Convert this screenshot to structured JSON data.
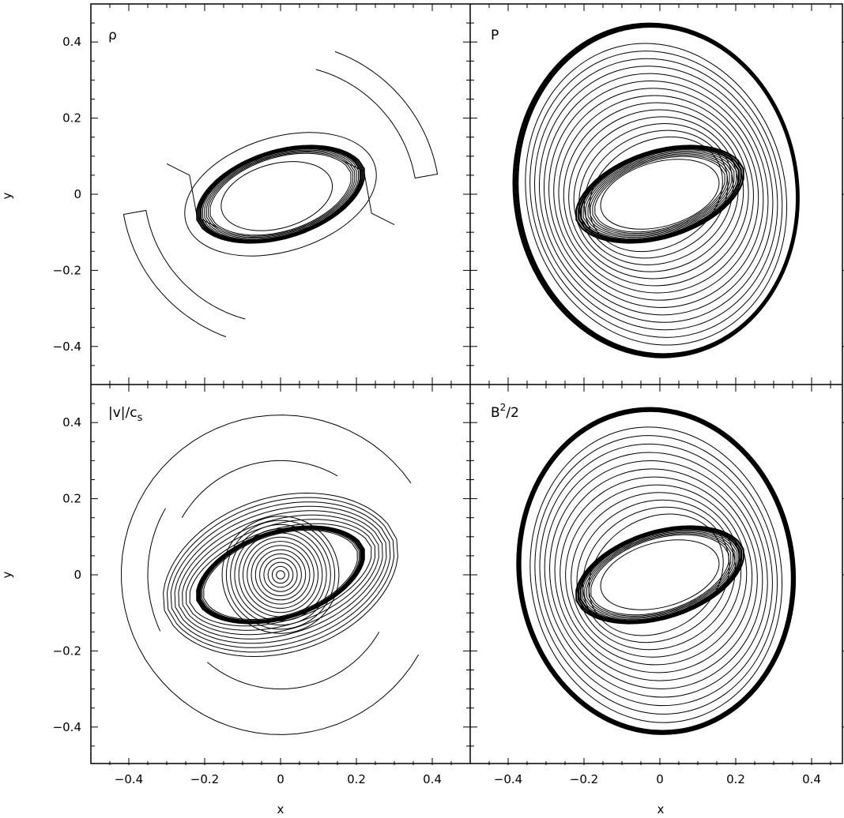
{
  "chart_data": [
    {
      "type": "contour",
      "panel": "top-left",
      "label_html": "ρ",
      "x_axis": {
        "ticks": [
          -0.4,
          -0.2,
          0,
          0.2,
          0.4
        ],
        "range": [
          -0.5,
          0.5
        ],
        "label": ""
      },
      "y_axis": {
        "ticks": [
          -0.4,
          -0.2,
          0,
          0.2,
          0.4
        ],
        "range": [
          -0.5,
          0.5
        ],
        "label": "y"
      },
      "features": [
        "central elliptical shock ring",
        "two spiral arms"
      ]
    },
    {
      "type": "contour",
      "panel": "top-right",
      "label_html": "P",
      "x_axis": {
        "ticks": [
          -0.4,
          -0.2,
          0,
          0.2,
          0.4
        ],
        "range": [
          -0.5,
          0.5
        ],
        "label": ""
      },
      "y_axis": {
        "ticks": [
          -0.4,
          -0.2,
          0,
          0.2,
          0.4
        ],
        "range": [
          -0.5,
          0.5
        ],
        "label": ""
      },
      "features": [
        "central elliptical shock ring",
        "outer elliptical blast wave",
        "many interior contours"
      ]
    },
    {
      "type": "contour",
      "panel": "bottom-left",
      "label_html": "|v|/c_s",
      "x_axis": {
        "ticks": [
          -0.4,
          -0.2,
          0,
          0.2,
          0.4
        ],
        "range": [
          -0.5,
          0.5
        ],
        "label": "x"
      },
      "y_axis": {
        "ticks": [
          -0.4,
          -0.2,
          0,
          0.2,
          0.4
        ],
        "range": [
          -0.5,
          0.5
        ],
        "label": "y"
      },
      "features": [
        "concentric circles at center",
        "lens shaped shock",
        "outer circular front"
      ]
    },
    {
      "type": "contour",
      "panel": "bottom-right",
      "label_html": "B^2/2",
      "x_axis": {
        "ticks": [
          -0.4,
          -0.2,
          0,
          0.2,
          0.4
        ],
        "range": [
          -0.5,
          0.5
        ],
        "label": "x"
      },
      "y_axis": {
        "ticks": [
          -0.4,
          -0.2,
          0,
          0.2,
          0.4
        ],
        "range": [
          -0.5,
          0.5
        ],
        "label": ""
      },
      "features": [
        "central elliptical shock ring",
        "outer elliptical blast wave",
        "many interior contours"
      ]
    }
  ],
  "panel_labels": {
    "tl": "ρ",
    "tr": "P",
    "bl_main": "|v|/c",
    "bl_sub": "s",
    "br_main": "B",
    "br_sup": "2",
    "br_tail": "/2"
  },
  "axis_labels": {
    "x": "x",
    "y": "y"
  },
  "tick_text": [
    "−0.4",
    "−0.2",
    "0",
    "0.2",
    "0.4"
  ],
  "tick_values": [
    -0.4,
    -0.2,
    0,
    0.2,
    0.4
  ]
}
